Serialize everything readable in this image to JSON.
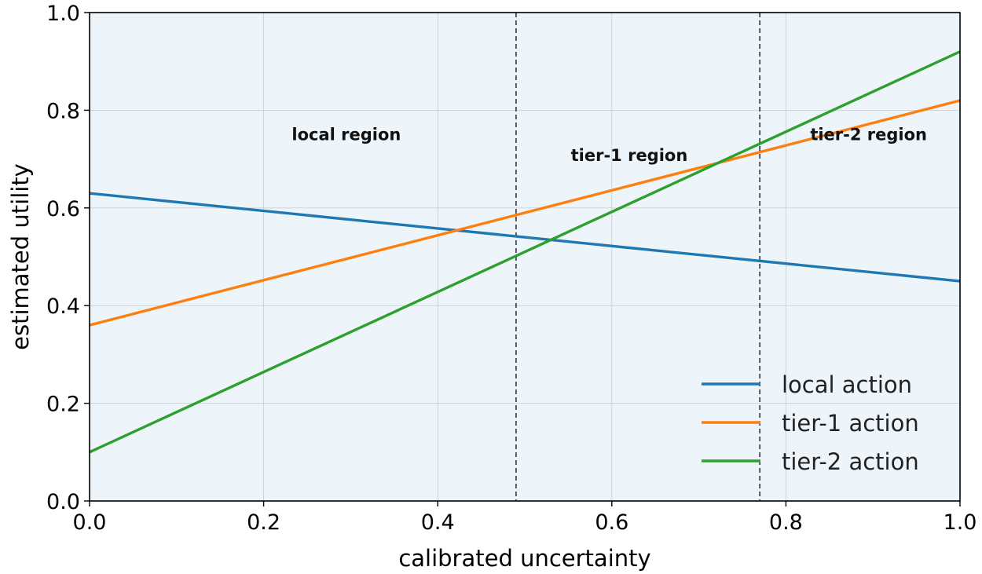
{
  "chart_data": {
    "type": "line",
    "title": "",
    "xlabel": "calibrated uncertainty",
    "ylabel": "estimated utility",
    "xlim": [
      0.0,
      1.0
    ],
    "ylim": [
      0.0,
      1.0
    ],
    "x_ticks": [
      0.0,
      0.2,
      0.4,
      0.6,
      0.8,
      1.0
    ],
    "y_ticks": [
      0.0,
      0.2,
      0.4,
      0.6,
      0.8,
      1.0
    ],
    "x_tick_labels": [
      "0.0",
      "0.2",
      "0.4",
      "0.6",
      "0.8",
      "1.0"
    ],
    "y_tick_labels": [
      "0.0",
      "0.2",
      "0.4",
      "0.6",
      "0.8",
      "1.0"
    ],
    "grid": true,
    "background_color": "#eef5fa",
    "legend_position": "lower-right",
    "series": [
      {
        "name": "local action",
        "color": "#1f77b4",
        "x": [
          0.0,
          1.0
        ],
        "y": [
          0.63,
          0.45
        ]
      },
      {
        "name": "tier-1 action",
        "color": "#ff7f0e",
        "x": [
          0.0,
          1.0
        ],
        "y": [
          0.36,
          0.82
        ]
      },
      {
        "name": "tier-2 action",
        "color": "#2ca02c",
        "x": [
          0.0,
          1.0
        ],
        "y": [
          0.1,
          0.92
        ]
      }
    ],
    "thresholds": [
      {
        "x": 0.49,
        "style": "dashed",
        "color": "#2b3340"
      },
      {
        "x": 0.77,
        "style": "dashed",
        "color": "#2b3340"
      }
    ],
    "region_labels": [
      {
        "text": "local region",
        "x": 0.295,
        "y": 0.75
      },
      {
        "text": "tier-1 region",
        "x": 0.62,
        "y": 0.707
      },
      {
        "text": "tier-2 region",
        "x": 0.895,
        "y": 0.75
      }
    ]
  }
}
